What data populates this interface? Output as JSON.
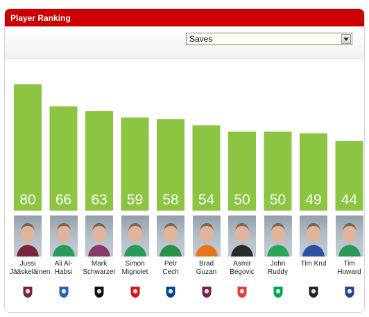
{
  "header": {
    "title": "Player Ranking"
  },
  "filter": {
    "selected": "Saves"
  },
  "colors": {
    "bar": "#8bc542",
    "bar_label": "#ffffff",
    "header": "#cc0000"
  },
  "chart_data": {
    "type": "bar",
    "title": "Player Ranking",
    "metric": "Saves",
    "categories": [
      "Jussi Jääskeläinen",
      "Ali Al-Habsi",
      "Mark Schwarzer",
      "Simon Mignolet",
      "Petr Cech",
      "Brad Guzan",
      "Asmir Begovic",
      "John Ruddy",
      "Tim Krul",
      "Tim Howard"
    ],
    "values": [
      80,
      66,
      63,
      59,
      58,
      54,
      50,
      50,
      49,
      44
    ],
    "data_labels": [
      "80",
      "66",
      "63",
      "59",
      "58",
      "54",
      "50",
      "50",
      "49",
      "44"
    ],
    "ylim": [
      0,
      92
    ],
    "grid": false,
    "legend": "none"
  },
  "players": [
    {
      "name_line1": "Jussi",
      "name_line2": "Jääskeläinen",
      "club_icon": "west-ham-crest-icon",
      "club_color": "#7a263a",
      "kit": "#7a263a"
    },
    {
      "name_line1": "Ali Al-",
      "name_line2": "Habsi",
      "club_icon": "wigan-crest-icon",
      "club_color": "#1c62b8",
      "kit": "#2a9a5a"
    },
    {
      "name_line1": "Mark",
      "name_line2": "Schwarzer",
      "club_icon": "fulham-crest-icon",
      "club_color": "#111111",
      "kit": "#8a3a6a"
    },
    {
      "name_line1": "Simon",
      "name_line2": "Mignolet",
      "club_icon": "sunderland-crest-icon",
      "club_color": "#d7141a",
      "kit": "#2a9a5a"
    },
    {
      "name_line1": "Petr",
      "name_line2": "Cech",
      "club_icon": "chelsea-crest-icon",
      "club_color": "#034694",
      "kit": "#2c8f4a"
    },
    {
      "name_line1": "Brad",
      "name_line2": "Guzan",
      "club_icon": "aston-villa-crest-icon",
      "club_color": "#7a1f48",
      "kit": "#e8741c"
    },
    {
      "name_line1": "Asmir",
      "name_line2": "Begovic",
      "club_icon": "stoke-crest-icon",
      "club_color": "#e03a3e",
      "kit": "#2a2a2a"
    },
    {
      "name_line1": "John",
      "name_line2": "Ruddy",
      "club_icon": "norwich-crest-icon",
      "club_color": "#00a650",
      "kit": "#2aa55a"
    },
    {
      "name_line1": "Tim Krul",
      "name_line2": "",
      "club_icon": "newcastle-crest-icon",
      "club_color": "#241f20",
      "kit": "#2f4fa0"
    },
    {
      "name_line1": "Tim",
      "name_line2": "Howard",
      "club_icon": "everton-crest-icon",
      "club_color": "#274488",
      "kit": "#2a9a5a"
    }
  ]
}
